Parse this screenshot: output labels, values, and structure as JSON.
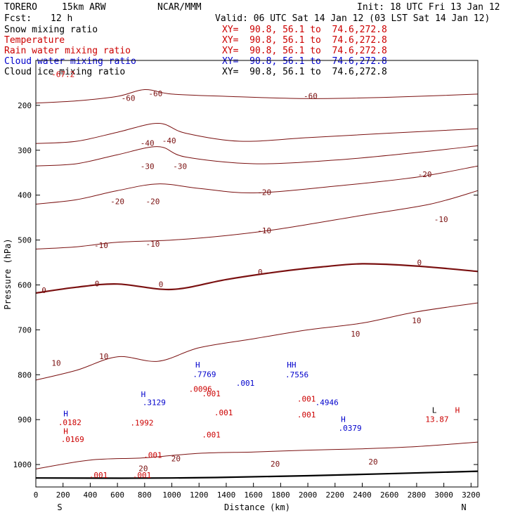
{
  "header": {
    "model": "TORERO",
    "resolution": "15km ARW",
    "center": "NCAR/MMM",
    "init": "Init: 18 UTC Fri 13 Jan 12",
    "fcst_label": "Fcst:",
    "fcst_value": "12 h",
    "valid": "Valid: 06 UTC Sat 14 Jan 12 (03 LST Sat 14 Jan 12)"
  },
  "fields": [
    {
      "name": "Snow mixing ratio",
      "xy": "XY=  90.8, 56.1 to  74.6,272.8",
      "color": "#000000"
    },
    {
      "name": "Temperature",
      "xy": "XY=  90.8, 56.1 to  74.6,272.8",
      "color": "#cc0000"
    },
    {
      "name": "Rain water mixing ratio",
      "xy": "XY=  90.8, 56.1 to  74.6,272.8",
      "color": "#cc0000"
    },
    {
      "name": "Cloud water mixing ratio",
      "xy": "XY=  90.8, 56.1 to  74.6,272.8",
      "color": "#0000cc"
    },
    {
      "name": "Cloud ice mixing ratio",
      "xy": "XY=  90.8, 56.1 to  74.6,272.8",
      "color": "#000000"
    }
  ],
  "chart_data": {
    "type": "line",
    "xlabel": "Distance (km)",
    "ylabel": "Pressure (hPa)",
    "xlim": [
      0,
      3250
    ],
    "ylim": [
      1050,
      100
    ],
    "yscale": "linear-inverted",
    "x_ticks": [
      0,
      200,
      400,
      600,
      800,
      1000,
      1200,
      1400,
      1600,
      1800,
      2000,
      2200,
      2400,
      2600,
      2800,
      3000,
      3200
    ],
    "y_ticks": [
      200,
      300,
      400,
      500,
      600,
      700,
      800,
      900,
      1000
    ],
    "x_tick_labels": [
      "0",
      "200",
      "400",
      "600",
      "800",
      "1000",
      "1200",
      "1400",
      "1600",
      "1800",
      "2000",
      "2200",
      "2400",
      "2600",
      "2800",
      "3000",
      "3200"
    ],
    "y_tick_labels": [
      "200",
      "300",
      "400",
      "500",
      "600",
      "700",
      "800",
      "900",
      "1000"
    ],
    "end_labels": {
      "left": "S",
      "right": "N"
    },
    "temperature_isotherms": [
      {
        "level": -60,
        "points": [
          [
            0,
            195
          ],
          [
            300,
            190
          ],
          [
            600,
            180
          ],
          [
            800,
            165
          ],
          [
            1000,
            175
          ],
          [
            1400,
            180
          ],
          [
            2000,
            185
          ],
          [
            2600,
            182
          ],
          [
            3250,
            175
          ]
        ]
      },
      {
        "level": -40,
        "points": [
          [
            0,
            285
          ],
          [
            300,
            280
          ],
          [
            600,
            260
          ],
          [
            900,
            240
          ],
          [
            1100,
            262
          ],
          [
            1500,
            280
          ],
          [
            2000,
            272
          ],
          [
            2600,
            262
          ],
          [
            3250,
            252
          ]
        ]
      },
      {
        "level": -30,
        "points": [
          [
            0,
            335
          ],
          [
            300,
            330
          ],
          [
            600,
            310
          ],
          [
            900,
            292
          ],
          [
            1100,
            315
          ],
          [
            1600,
            330
          ],
          [
            2200,
            322
          ],
          [
            2800,
            305
          ],
          [
            3250,
            290
          ]
        ]
      },
      {
        "level": -20,
        "points": [
          [
            0,
            420
          ],
          [
            300,
            410
          ],
          [
            600,
            390
          ],
          [
            900,
            375
          ],
          [
            1200,
            385
          ],
          [
            1600,
            395
          ],
          [
            2200,
            380
          ],
          [
            2800,
            360
          ],
          [
            3250,
            335
          ]
        ]
      },
      {
        "level": -10,
        "points": [
          [
            0,
            520
          ],
          [
            300,
            515
          ],
          [
            600,
            505
          ],
          [
            1000,
            500
          ],
          [
            1400,
            490
          ],
          [
            1800,
            475
          ],
          [
            2400,
            445
          ],
          [
            2900,
            420
          ],
          [
            3250,
            390
          ]
        ]
      },
      {
        "level": 0,
        "points": [
          [
            0,
            618
          ],
          [
            300,
            605
          ],
          [
            600,
            598
          ],
          [
            1000,
            610
          ],
          [
            1400,
            588
          ],
          [
            1800,
            570
          ],
          [
            2100,
            560
          ],
          [
            2400,
            553
          ],
          [
            2800,
            558
          ],
          [
            3250,
            570
          ]
        ]
      },
      {
        "level": 10,
        "points": [
          [
            0,
            812
          ],
          [
            300,
            790
          ],
          [
            600,
            760
          ],
          [
            900,
            770
          ],
          [
            1200,
            740
          ],
          [
            1600,
            720
          ],
          [
            2000,
            700
          ],
          [
            2400,
            685
          ],
          [
            2800,
            660
          ],
          [
            3250,
            640
          ]
        ]
      },
      {
        "level": 20,
        "points": [
          [
            0,
            1010
          ],
          [
            400,
            990
          ],
          [
            800,
            985
          ],
          [
            1200,
            975
          ],
          [
            1600,
            972
          ],
          [
            2000,
            968
          ],
          [
            2400,
            965
          ],
          [
            2800,
            960
          ],
          [
            3250,
            950
          ]
        ]
      }
    ],
    "contour_labels": [
      {
        "text": "-67.2",
        "x": 200,
        "p": 137,
        "color": "#cc0000"
      },
      {
        "text": "-60",
        "x": 680,
        "p": 190,
        "color": "#7a1010"
      },
      {
        "text": "-60",
        "x": 880,
        "p": 180,
        "color": "#7a1010"
      },
      {
        "text": "-60",
        "x": 2020,
        "p": 185,
        "color": "#7a1010"
      },
      {
        "text": "-40",
        "x": 820,
        "p": 290,
        "color": "#7a1010"
      },
      {
        "text": "-40",
        "x": 980,
        "p": 285,
        "color": "#7a1010"
      },
      {
        "text": "-30",
        "x": 820,
        "p": 342,
        "color": "#7a1010"
      },
      {
        "text": "-30",
        "x": 1060,
        "p": 342,
        "color": "#7a1010"
      },
      {
        "text": "-20",
        "x": 2860,
        "p": 360,
        "color": "#7a1010"
      },
      {
        "text": "-20",
        "x": 600,
        "p": 420,
        "color": "#7a1010"
      },
      {
        "text": "-20",
        "x": 860,
        "p": 420,
        "color": "#7a1010"
      },
      {
        "text": "-20",
        "x": 1680,
        "p": 400,
        "color": "#7a1010"
      },
      {
        "text": "-10",
        "x": 2980,
        "p": 460,
        "color": "#7a1010"
      },
      {
        "text": "-10",
        "x": 1680,
        "p": 485,
        "color": "#7a1010"
      },
      {
        "text": "-10",
        "x": 480,
        "p": 518,
        "color": "#7a1010"
      },
      {
        "text": "-10",
        "x": 860,
        "p": 515,
        "color": "#7a1010"
      },
      {
        "text": "0",
        "x": 2820,
        "p": 556,
        "color": "#7a1010"
      },
      {
        "text": "0",
        "x": 1650,
        "p": 577,
        "color": "#7a1010"
      },
      {
        "text": "0",
        "x": 450,
        "p": 603,
        "color": "#7a1010"
      },
      {
        "text": "0",
        "x": 920,
        "p": 605,
        "color": "#7a1010"
      },
      {
        "text": "0",
        "x": 60,
        "p": 618,
        "color": "#7a1010"
      },
      {
        "text": "10",
        "x": 2800,
        "p": 685,
        "color": "#7a1010"
      },
      {
        "text": "10",
        "x": 2350,
        "p": 715,
        "color": "#7a1010"
      },
      {
        "text": "10",
        "x": 500,
        "p": 765,
        "color": "#7a1010"
      },
      {
        "text": "10",
        "x": 150,
        "p": 780,
        "color": "#7a1010"
      },
      {
        "text": "20",
        "x": 1030,
        "p": 993,
        "color": "#7a1010"
      },
      {
        "text": "20",
        "x": 1760,
        "p": 1005,
        "color": "#7a1010"
      },
      {
        "text": "20",
        "x": 2480,
        "p": 1000,
        "color": "#7a1010"
      },
      {
        "text": "20",
        "x": 790,
        "p": 1015,
        "color": "#7a1010"
      }
    ],
    "cloud_labels": [
      {
        "text": "H",
        "x": 1190,
        "p": 784,
        "color": "#0000cc"
      },
      {
        "text": ".7769",
        "x": 1240,
        "p": 805,
        "color": "#0000cc"
      },
      {
        "text": "HH",
        "x": 1880,
        "p": 784,
        "color": "#0000cc"
      },
      {
        "text": ".7556",
        "x": 1920,
        "p": 806,
        "color": "#0000cc"
      },
      {
        "text": ".001",
        "x": 1540,
        "p": 825,
        "color": "#0000cc"
      },
      {
        "text": "H",
        "x": 790,
        "p": 850,
        "color": "#0000cc"
      },
      {
        "text": ".3129",
        "x": 870,
        "p": 868,
        "color": "#0000cc"
      },
      {
        "text": ".4946",
        "x": 2140,
        "p": 868,
        "color": "#0000cc"
      },
      {
        "text": "H",
        "x": 2260,
        "p": 905,
        "color": "#0000cc"
      },
      {
        "text": ".0379",
        "x": 2310,
        "p": 925,
        "color": "#0000cc"
      },
      {
        "text": "H",
        "x": 220,
        "p": 893,
        "color": "#0000cc"
      },
      {
        "text": "H",
        "x": 220,
        "p": 932,
        "color": "#cc0000"
      },
      {
        "text": "H",
        "x": 3100,
        "p": 885,
        "color": "#cc0000"
      },
      {
        "text": "L",
        "x": 2930,
        "p": 885,
        "color": "#000000"
      }
    ],
    "rain_labels": [
      {
        "text": ".0096",
        "x": 1210,
        "p": 838,
        "color": "#cc0000"
      },
      {
        "text": ".001",
        "x": 1290,
        "p": 848,
        "color": "#cc0000"
      },
      {
        "text": ".001",
        "x": 1380,
        "p": 890,
        "color": "#cc0000"
      },
      {
        "text": ".001",
        "x": 1990,
        "p": 860,
        "color": "#cc0000"
      },
      {
        "text": ".001",
        "x": 1990,
        "p": 895,
        "color": "#cc0000"
      },
      {
        "text": ".001",
        "x": 1290,
        "p": 940,
        "color": "#cc0000"
      },
      {
        "text": ".001",
        "x": 860,
        "p": 985,
        "color": "#cc0000"
      },
      {
        "text": ".001",
        "x": 460,
        "p": 1030,
        "color": "#cc0000"
      },
      {
        "text": ".001",
        "x": 780,
        "p": 1030,
        "color": "#cc0000"
      },
      {
        "text": ".0182",
        "x": 250,
        "p": 912,
        "color": "#cc0000"
      },
      {
        "text": ".0169",
        "x": 270,
        "p": 950,
        "color": "#cc0000"
      },
      {
        "text": ".1992",
        "x": 780,
        "p": 913,
        "color": "#cc0000"
      },
      {
        "text": "13.87",
        "x": 2950,
        "p": 905,
        "color": "#cc0000"
      }
    ],
    "terrain": [
      [
        0,
        1030
      ],
      [
        1000,
        1030
      ],
      [
        2000,
        1025
      ],
      [
        3250,
        1015
      ]
    ]
  }
}
